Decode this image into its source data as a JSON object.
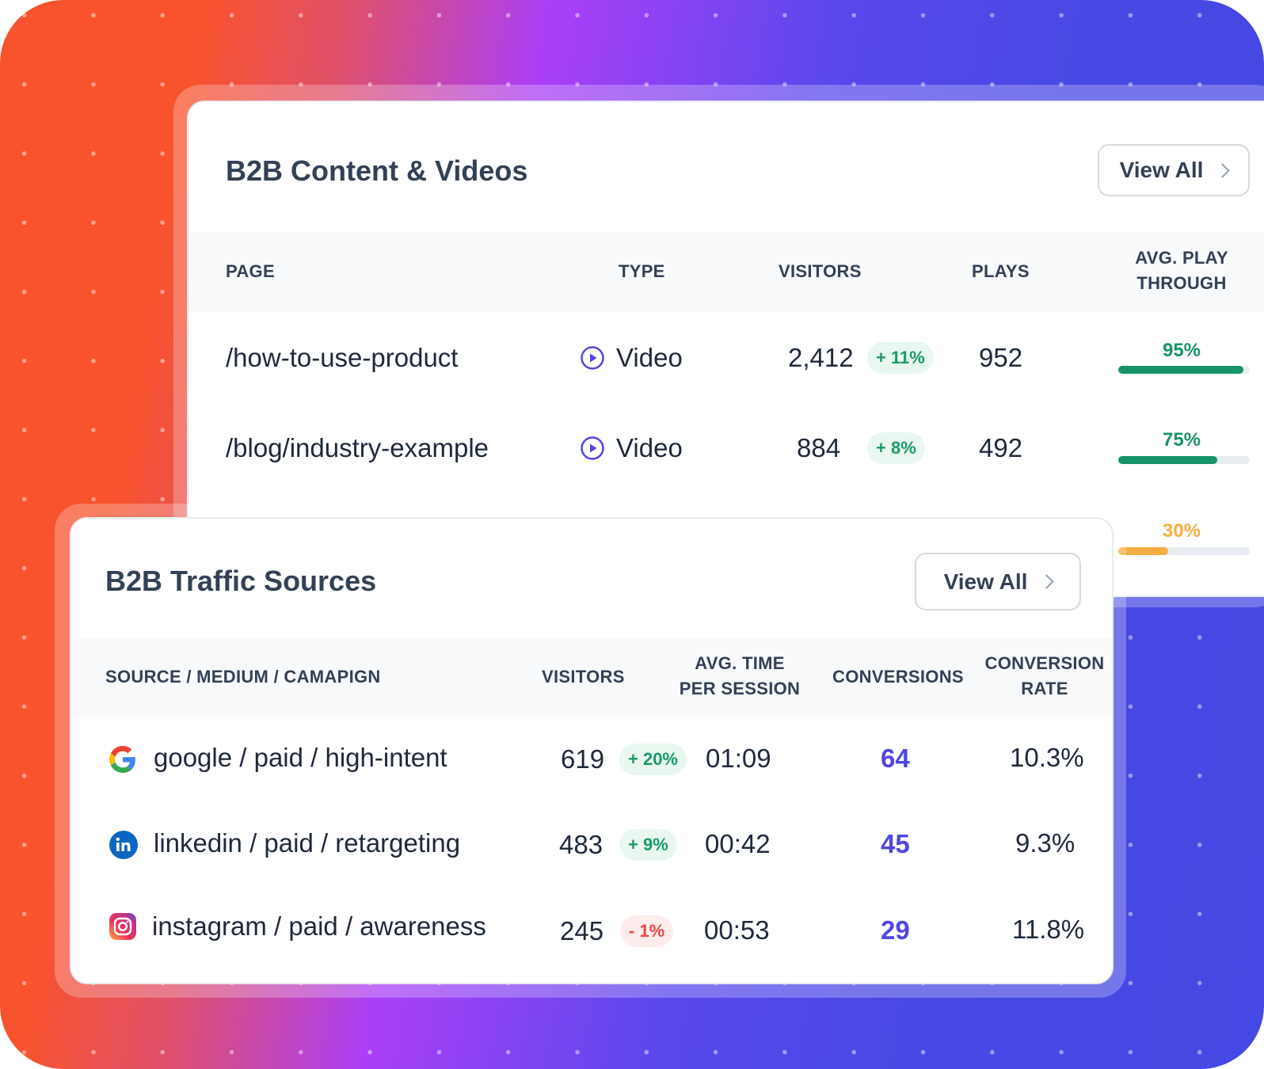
{
  "colors": {
    "accent": "#4f46e5",
    "positive": "#1a9a6a",
    "negative": "#ef4444",
    "progress_high": "#16936a",
    "progress_low": "#f6ad42"
  },
  "content_card": {
    "title": "B2B Content & Videos",
    "view_all_label": "View All",
    "columns": [
      "PAGE",
      "TYPE",
      "VISITORS",
      "PLAYS",
      "AVG. PLAY THROUGH"
    ],
    "rows": [
      {
        "page": "/how-to-use-product",
        "type": "Video",
        "type_icon": "play-circle-icon",
        "visitors": "2,412",
        "change": "+ 11%",
        "plays": "952",
        "play_through": "95%",
        "play_through_value": 95
      },
      {
        "page": "/blog/industry-example",
        "type": "Video",
        "type_icon": "play-circle-icon",
        "visitors": "884",
        "change": "+ 8%",
        "plays": "492",
        "play_through": "75%",
        "play_through_value": 75
      },
      {
        "play_through": "30%",
        "play_through_value": 30
      }
    ]
  },
  "traffic_card": {
    "title": "B2B Traffic Sources",
    "view_all_label": "View All",
    "columns": [
      "SOURCE / MEDIUM / CAMAPIGN",
      "VISITORS",
      "AVG. TIME PER SESSION",
      "CONVERSIONS",
      "CONVERSION RATE"
    ],
    "rows": [
      {
        "icon": "google-icon",
        "source": "google / paid / high-intent",
        "visitors": "619",
        "change": "+ 20%",
        "trend": "up",
        "avg_time": "01:09",
        "conversions": "64",
        "rate": "10.3%"
      },
      {
        "icon": "linkedin-icon",
        "source": "linkedin / paid / retargeting",
        "visitors": "483",
        "change": "+ 9%",
        "trend": "up",
        "avg_time": "00:42",
        "conversions": "45",
        "rate": "9.3%"
      },
      {
        "icon": "instagram-icon",
        "source": "instagram / paid / awareness",
        "visitors": "245",
        "change": "- 1%",
        "trend": "down",
        "avg_time": "00:53",
        "conversions": "29",
        "rate": "11.8%"
      }
    ]
  }
}
